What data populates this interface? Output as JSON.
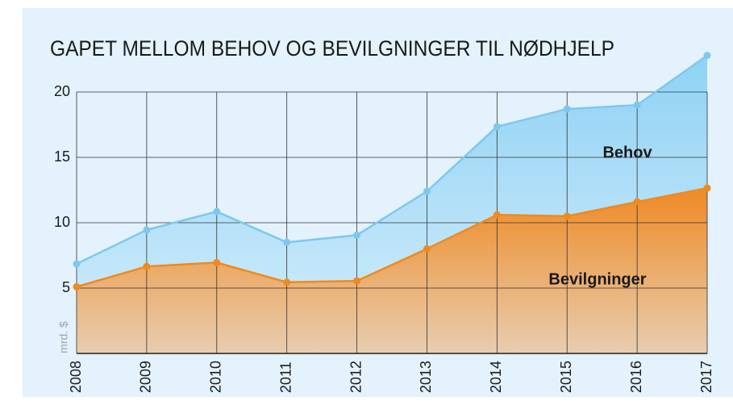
{
  "chart_data": {
    "type": "area",
    "title": "GAPET MELLOM BEHOV OG BEVILGNINGER TIL NØDHJELP",
    "y_label": "mrd. $",
    "categories": [
      "2008",
      "2009",
      "2010",
      "2011",
      "2012",
      "2013",
      "2014",
      "2015",
      "2016",
      "2017"
    ],
    "series": [
      {
        "name": "Behov",
        "color": "#7ec8ee",
        "values": [
          6.85,
          9.45,
          10.85,
          8.5,
          9.05,
          12.4,
          17.35,
          18.7,
          19.0,
          22.8
        ]
      },
      {
        "name": "Bevilgninger",
        "color": "#ee8a1f",
        "values": [
          5.1,
          6.65,
          6.95,
          5.45,
          5.55,
          8.0,
          10.6,
          10.5,
          11.6,
          12.65
        ]
      }
    ],
    "ylim": [
      0,
      20
    ],
    "yticks": [
      5,
      10,
      15,
      20
    ],
    "grid": true
  }
}
